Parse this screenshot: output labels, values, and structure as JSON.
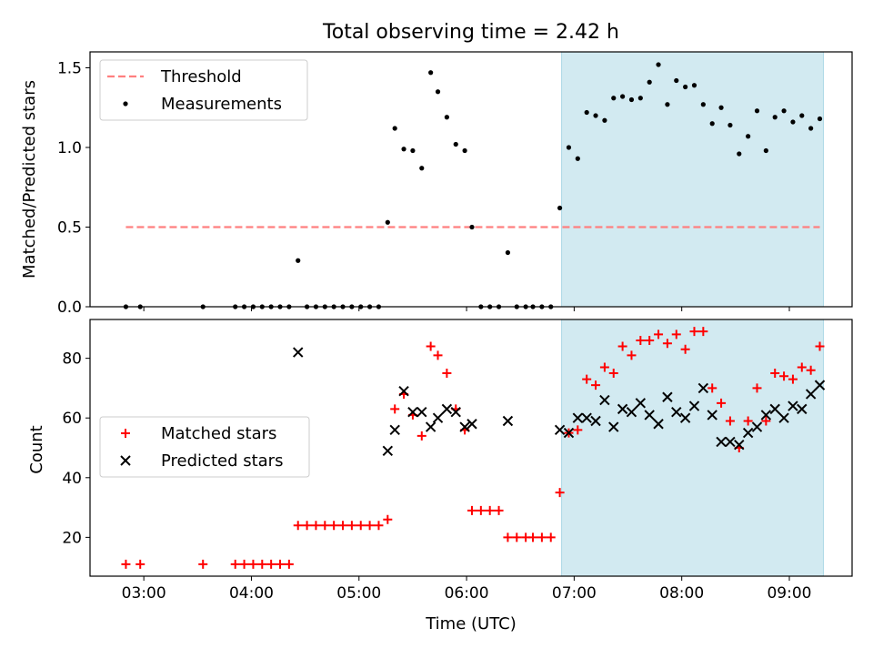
{
  "chart_data": [
    {
      "type": "scatter",
      "title": "Total observing time = 2.42 h",
      "ylabel": "Matched/Predicted stars",
      "xlabel": "",
      "x_axis": "Time (UTC)",
      "ylim": [
        0,
        1.6
      ],
      "yticks": [
        "0.0",
        "0.5",
        "1.0",
        "1.5"
      ],
      "highlight_span": {
        "start": "06:53",
        "end": "09:19",
        "color": "#add8e6"
      },
      "threshold": {
        "name": "Threshold",
        "value": 0.5,
        "start": "02:50",
        "end": "09:17",
        "color": "#ff7f7f"
      },
      "legend_position": "upper left",
      "series": [
        {
          "name": "Measurements",
          "marker": "dot",
          "color": "#000000",
          "points": [
            [
              "02:50",
              0
            ],
            [
              "02:58",
              0
            ],
            [
              "03:33",
              0
            ],
            [
              "03:51",
              0
            ],
            [
              "03:56",
              0
            ],
            [
              "04:01",
              0
            ],
            [
              "04:06",
              0
            ],
            [
              "04:11",
              0
            ],
            [
              "04:16",
              0
            ],
            [
              "04:21",
              0
            ],
            [
              "04:26",
              0.29
            ],
            [
              "04:31",
              0
            ],
            [
              "04:36",
              0
            ],
            [
              "04:41",
              0
            ],
            [
              "04:46",
              0
            ],
            [
              "04:51",
              0
            ],
            [
              "04:56",
              0
            ],
            [
              "05:01",
              0
            ],
            [
              "05:06",
              0
            ],
            [
              "05:11",
              0
            ],
            [
              "05:16",
              0.53
            ],
            [
              "05:20",
              1.12
            ],
            [
              "05:25",
              0.99
            ],
            [
              "05:30",
              0.98
            ],
            [
              "05:35",
              0.87
            ],
            [
              "05:40",
              1.47
            ],
            [
              "05:44",
              1.35
            ],
            [
              "05:49",
              1.19
            ],
            [
              "05:54",
              1.02
            ],
            [
              "05:59",
              0.98
            ],
            [
              "06:03",
              0.5
            ],
            [
              "06:08",
              0
            ],
            [
              "06:13",
              0
            ],
            [
              "06:18",
              0
            ],
            [
              "06:23",
              0.34
            ],
            [
              "06:28",
              0
            ],
            [
              "06:33",
              0
            ],
            [
              "06:37",
              0
            ],
            [
              "06:42",
              0
            ],
            [
              "06:47",
              0
            ],
            [
              "06:52",
              0.62
            ],
            [
              "06:57",
              1.0
            ],
            [
              "07:02",
              0.93
            ],
            [
              "07:07",
              1.22
            ],
            [
              "07:12",
              1.2
            ],
            [
              "07:17",
              1.17
            ],
            [
              "07:22",
              1.31
            ],
            [
              "07:27",
              1.32
            ],
            [
              "07:32",
              1.3
            ],
            [
              "07:37",
              1.31
            ],
            [
              "07:42",
              1.41
            ],
            [
              "07:47",
              1.52
            ],
            [
              "07:52",
              1.27
            ],
            [
              "07:57",
              1.42
            ],
            [
              "08:02",
              1.38
            ],
            [
              "08:07",
              1.39
            ],
            [
              "08:12",
              1.27
            ],
            [
              "08:17",
              1.15
            ],
            [
              "08:22",
              1.25
            ],
            [
              "08:27",
              1.14
            ],
            [
              "08:32",
              0.96
            ],
            [
              "08:37",
              1.07
            ],
            [
              "08:42",
              1.23
            ],
            [
              "08:47",
              0.98
            ],
            [
              "08:52",
              1.19
            ],
            [
              "08:57",
              1.23
            ],
            [
              "09:02",
              1.16
            ],
            [
              "09:07",
              1.2
            ],
            [
              "09:12",
              1.12
            ],
            [
              "09:17",
              1.18
            ]
          ]
        }
      ]
    },
    {
      "type": "scatter",
      "title": "",
      "ylabel": "Count",
      "xlabel": "Time (UTC)",
      "ylim": [
        7,
        93
      ],
      "yticks": [
        "20",
        "40",
        "60",
        "80"
      ],
      "xlim": [
        "02:30",
        "09:35"
      ],
      "xticks": [
        "03:00",
        "04:00",
        "05:00",
        "06:00",
        "07:00",
        "08:00",
        "09:00"
      ],
      "highlight_span": {
        "start": "06:53",
        "end": "09:19",
        "color": "#add8e6"
      },
      "legend_position": "center left",
      "series": [
        {
          "name": "Matched stars",
          "marker": "plus",
          "color": "#ff0000",
          "points": [
            [
              "02:50",
              11
            ],
            [
              "02:58",
              11
            ],
            [
              "03:33",
              11
            ],
            [
              "03:51",
              11
            ],
            [
              "03:56",
              11
            ],
            [
              "04:01",
              11
            ],
            [
              "04:06",
              11
            ],
            [
              "04:11",
              11
            ],
            [
              "04:16",
              11
            ],
            [
              "04:21",
              11
            ],
            [
              "04:26",
              24
            ],
            [
              "04:31",
              24
            ],
            [
              "04:36",
              24
            ],
            [
              "04:41",
              24
            ],
            [
              "04:46",
              24
            ],
            [
              "04:51",
              24
            ],
            [
              "04:56",
              24
            ],
            [
              "05:01",
              24
            ],
            [
              "05:06",
              24
            ],
            [
              "05:11",
              24
            ],
            [
              "05:16",
              26
            ],
            [
              "05:20",
              63
            ],
            [
              "05:25",
              68
            ],
            [
              "05:30",
              61
            ],
            [
              "05:35",
              54
            ],
            [
              "05:40",
              84
            ],
            [
              "05:44",
              81
            ],
            [
              "05:49",
              75
            ],
            [
              "05:54",
              63
            ],
            [
              "05:59",
              56
            ],
            [
              "06:03",
              29
            ],
            [
              "06:08",
              29
            ],
            [
              "06:13",
              29
            ],
            [
              "06:18",
              29
            ],
            [
              "06:23",
              20
            ],
            [
              "06:28",
              20
            ],
            [
              "06:33",
              20
            ],
            [
              "06:37",
              20
            ],
            [
              "06:42",
              20
            ],
            [
              "06:47",
              20
            ],
            [
              "06:52",
              35
            ],
            [
              "06:57",
              55
            ],
            [
              "07:02",
              56
            ],
            [
              "07:07",
              73
            ],
            [
              "07:12",
              71
            ],
            [
              "07:17",
              77
            ],
            [
              "07:22",
              75
            ],
            [
              "07:27",
              84
            ],
            [
              "07:32",
              81
            ],
            [
              "07:37",
              86
            ],
            [
              "07:42",
              86
            ],
            [
              "07:47",
              88
            ],
            [
              "07:52",
              85
            ],
            [
              "07:57",
              88
            ],
            [
              "08:02",
              83
            ],
            [
              "08:07",
              89
            ],
            [
              "08:12",
              89
            ],
            [
              "08:17",
              70
            ],
            [
              "08:22",
              65
            ],
            [
              "08:27",
              59
            ],
            [
              "08:32",
              50
            ],
            [
              "08:37",
              59
            ],
            [
              "08:42",
              70
            ],
            [
              "08:47",
              59
            ],
            [
              "08:52",
              75
            ],
            [
              "08:57",
              74
            ],
            [
              "09:02",
              73
            ],
            [
              "09:07",
              77
            ],
            [
              "09:12",
              76
            ],
            [
              "09:17",
              84
            ]
          ]
        },
        {
          "name": "Predicted stars",
          "marker": "x",
          "color": "#000000",
          "points": [
            [
              "04:26",
              82
            ],
            [
              "05:16",
              49
            ],
            [
              "05:20",
              56
            ],
            [
              "05:25",
              69
            ],
            [
              "05:30",
              62
            ],
            [
              "05:35",
              62
            ],
            [
              "05:40",
              57
            ],
            [
              "05:44",
              60
            ],
            [
              "05:49",
              63
            ],
            [
              "05:54",
              62
            ],
            [
              "05:59",
              57
            ],
            [
              "06:03",
              58
            ],
            [
              "06:23",
              59
            ],
            [
              "06:52",
              56
            ],
            [
              "06:57",
              55
            ],
            [
              "07:02",
              60
            ],
            [
              "07:07",
              60
            ],
            [
              "07:12",
              59
            ],
            [
              "07:17",
              66
            ],
            [
              "07:22",
              57
            ],
            [
              "07:27",
              63
            ],
            [
              "07:32",
              62
            ],
            [
              "07:37",
              65
            ],
            [
              "07:42",
              61
            ],
            [
              "07:47",
              58
            ],
            [
              "07:52",
              67
            ],
            [
              "07:57",
              62
            ],
            [
              "08:02",
              60
            ],
            [
              "08:07",
              64
            ],
            [
              "08:12",
              70
            ],
            [
              "08:17",
              61
            ],
            [
              "08:22",
              52
            ],
            [
              "08:27",
              52
            ],
            [
              "08:32",
              51
            ],
            [
              "08:37",
              55
            ],
            [
              "08:42",
              57
            ],
            [
              "08:47",
              61
            ],
            [
              "08:52",
              63
            ],
            [
              "08:57",
              60
            ],
            [
              "09:02",
              64
            ],
            [
              "09:07",
              63
            ],
            [
              "09:12",
              68
            ],
            [
              "09:17",
              71
            ]
          ]
        }
      ]
    }
  ]
}
